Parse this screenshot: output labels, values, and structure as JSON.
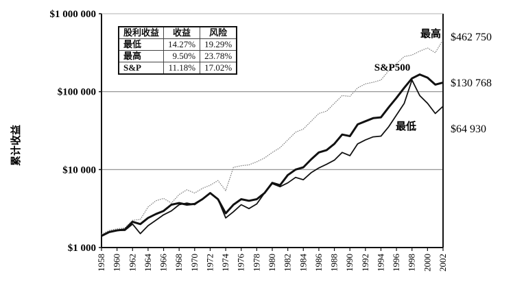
{
  "chart_data": {
    "type": "line",
    "title": "",
    "xlabel": "",
    "ylabel": "累计收益",
    "yscale": "log",
    "ylim": [
      1000,
      1000000
    ],
    "xlim": [
      1958,
      2002
    ],
    "grid": "horizontal at $10 000 and $100 000",
    "y_ticks": [
      {
        "v": 1000,
        "label": "$1 000"
      },
      {
        "v": 10000,
        "label": "$10 000"
      },
      {
        "v": 100000,
        "label": "$100 000"
      },
      {
        "v": 1000000,
        "label": "$1 000 000"
      }
    ],
    "x_ticks": [
      "1958",
      "1960",
      "1962",
      "1964",
      "1966",
      "1968",
      "1970",
      "1972",
      "1974",
      "1976",
      "1978",
      "1980",
      "1982",
      "1984",
      "1986",
      "1988",
      "1990",
      "1992",
      "1994",
      "1996",
      "1998",
      "2000",
      "2002"
    ],
    "x": [
      1958,
      1959,
      1960,
      1961,
      1962,
      1963,
      1964,
      1965,
      1966,
      1967,
      1968,
      1969,
      1970,
      1971,
      1972,
      1973,
      1974,
      1975,
      1976,
      1977,
      1978,
      1979,
      1980,
      1981,
      1982,
      1983,
      1984,
      1985,
      1986,
      1987,
      1988,
      1989,
      1990,
      1991,
      1992,
      1993,
      1994,
      1995,
      1996,
      1997,
      1998,
      1999,
      2000,
      2001,
      2002
    ],
    "series": [
      {
        "name": "最高",
        "end_label": "$462 750",
        "style": "dotted",
        "values": [
          1480,
          1660,
          1740,
          1780,
          2240,
          2290,
          3310,
          3980,
          4270,
          3720,
          4790,
          5500,
          5010,
          5750,
          6310,
          7240,
          5370,
          10700,
          11200,
          11500,
          12600,
          14100,
          16600,
          19100,
          24000,
          30200,
          33100,
          41700,
          52500,
          56200,
          70800,
          89100,
          87100,
          112000,
          126000,
          132000,
          141000,
          186000,
          229000,
          282000,
          295000,
          331000,
          363000,
          316000,
          462750
        ]
      },
      {
        "name": "S&P500",
        "end_label": "$130 768",
        "style": "thick",
        "values": [
          1410,
          1580,
          1660,
          1700,
          2140,
          2000,
          2400,
          2690,
          2950,
          3550,
          3720,
          3550,
          3630,
          4170,
          5010,
          4170,
          2750,
          3550,
          4170,
          3980,
          4170,
          5010,
          6760,
          6310,
          8510,
          10000,
          10700,
          13500,
          16600,
          17800,
          21400,
          28200,
          26900,
          38000,
          41700,
          45700,
          46800,
          63100,
          83200,
          112000,
          148000,
          166000,
          151000,
          123000,
          130768
        ]
      },
      {
        "name": "最低",
        "end_label": "$64 930",
        "style": "solid",
        "values": [
          1410,
          1580,
          1660,
          1660,
          2000,
          1510,
          1910,
          2240,
          2630,
          2950,
          3550,
          3720,
          3550,
          4170,
          5010,
          4170,
          2400,
          2880,
          3550,
          3160,
          3630,
          5010,
          6610,
          6030,
          6760,
          7940,
          7410,
          9120,
          10500,
          11700,
          13200,
          16600,
          15100,
          21400,
          24000,
          26300,
          26900,
          35500,
          50100,
          70800,
          141000,
          89100,
          70800,
          52500,
          64930
        ]
      }
    ],
    "inset_table": {
      "headers": [
        "股利收益",
        "收益",
        "风险"
      ],
      "rows": [
        [
          "最低",
          "14.27%",
          "19.29%"
        ],
        [
          "最高",
          "9.50%",
          "23.78%"
        ],
        [
          "S&P",
          "11.18%",
          "17.02%"
        ]
      ]
    }
  }
}
